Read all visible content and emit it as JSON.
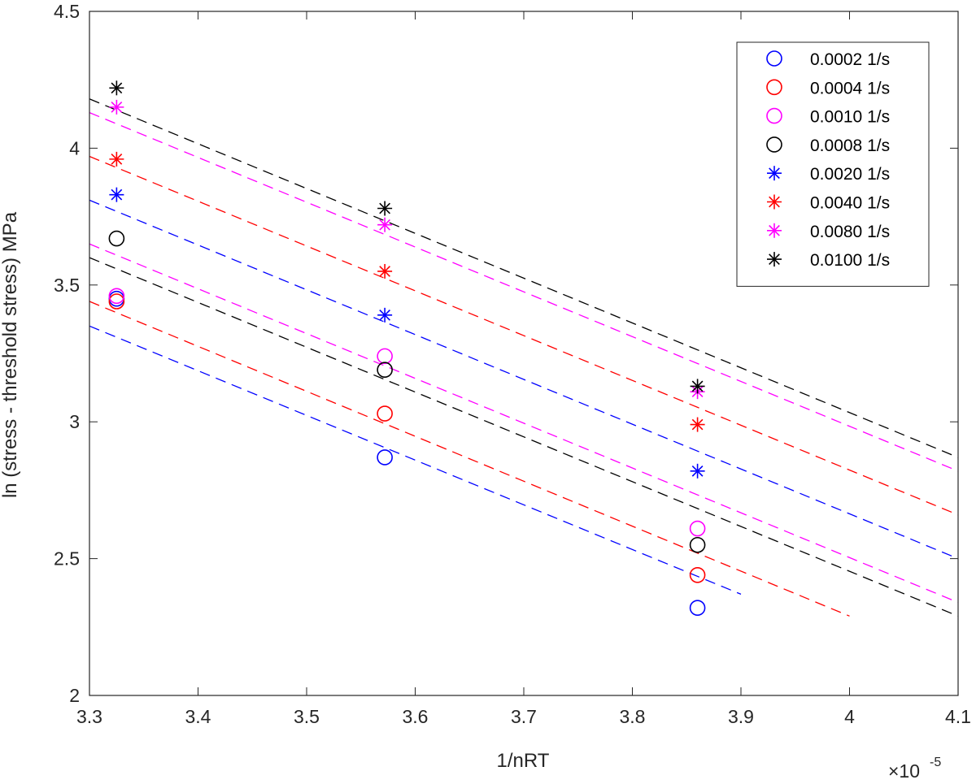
{
  "chart_data": {
    "type": "scatter",
    "xlabel": "1/nRT",
    "ylabel": "ln (stress - threshold stress) MPa",
    "x_exponent_label": "×10",
    "x_exponent_power": "-5",
    "xlim": [
      3.3,
      4.1
    ],
    "ylim": [
      2,
      4.5
    ],
    "xticks": [
      "3.3",
      "3.4",
      "3.5",
      "3.6",
      "3.7",
      "3.8",
      "3.9",
      "4",
      "4.1"
    ],
    "yticks": [
      "2",
      "2.5",
      "3",
      "3.5",
      "4",
      "4.5"
    ],
    "grid": false,
    "legend_position": "top-right",
    "series": [
      {
        "name": "0.0002 1/s",
        "marker": "circle",
        "color": "#0000ff",
        "x": [
          3.325,
          3.572,
          3.86
        ],
        "y": [
          3.45,
          2.87,
          2.32
        ],
        "fit": {
          "x": [
            3.3,
            3.9
          ],
          "y": [
            3.35,
            2.37
          ]
        }
      },
      {
        "name": "0.0004 1/s",
        "marker": "circle",
        "color": "#ff0000",
        "x": [
          3.325,
          3.572,
          3.86
        ],
        "y": [
          3.44,
          3.03,
          2.44
        ],
        "fit": {
          "x": [
            3.3,
            4.0
          ],
          "y": [
            3.44,
            2.29
          ]
        }
      },
      {
        "name": "0.0010 1/s",
        "marker": "circle",
        "color": "#ff00ff",
        "x": [
          3.325,
          3.572,
          3.86
        ],
        "y": [
          3.46,
          3.24,
          2.61
        ],
        "fit": {
          "x": [
            3.3,
            4.1
          ],
          "y": [
            3.65,
            2.34
          ]
        }
      },
      {
        "name": "0.0008 1/s",
        "marker": "circle",
        "color": "#000000",
        "x": [
          3.325,
          3.572,
          3.86
        ],
        "y": [
          3.67,
          3.19,
          2.55
        ],
        "fit": {
          "x": [
            3.3,
            4.1
          ],
          "y": [
            3.6,
            2.29
          ]
        }
      },
      {
        "name": "0.0020 1/s",
        "marker": "asterisk",
        "color": "#0000ff",
        "x": [
          3.325,
          3.572,
          3.86
        ],
        "y": [
          3.83,
          3.39,
          2.82
        ],
        "fit": {
          "x": [
            3.3,
            4.1
          ],
          "y": [
            3.81,
            2.5
          ]
        }
      },
      {
        "name": "0.0040 1/s",
        "marker": "asterisk",
        "color": "#ff0000",
        "x": [
          3.325,
          3.572,
          3.86
        ],
        "y": [
          3.96,
          3.55,
          2.99
        ],
        "fit": {
          "x": [
            3.3,
            4.1
          ],
          "y": [
            3.97,
            2.66
          ]
        }
      },
      {
        "name": "0.0080 1/s",
        "marker": "asterisk",
        "color": "#ff00ff",
        "x": [
          3.325,
          3.572,
          3.86
        ],
        "y": [
          4.15,
          3.72,
          3.11
        ],
        "fit": {
          "x": [
            3.3,
            4.1
          ],
          "y": [
            4.13,
            2.82
          ]
        }
      },
      {
        "name": "0.0100 1/s",
        "marker": "asterisk",
        "color": "#000000",
        "x": [
          3.325,
          3.572,
          3.86
        ],
        "y": [
          4.22,
          3.78,
          3.13
        ],
        "fit": {
          "x": [
            3.3,
            4.1
          ],
          "y": [
            4.18,
            2.87
          ]
        }
      }
    ]
  }
}
